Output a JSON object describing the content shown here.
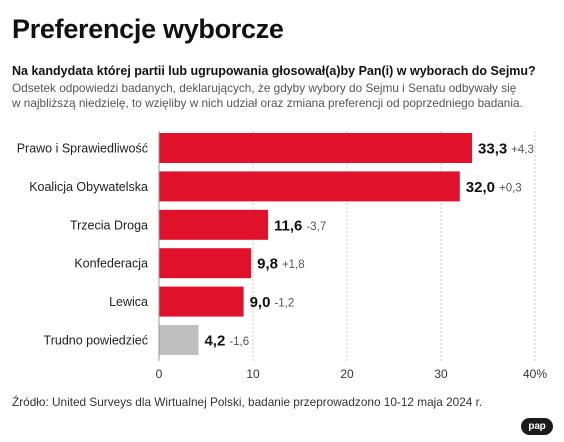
{
  "header": {
    "title": "Preferencje wyborcze",
    "subtitle": "Na kandydata której partii lub ugrupowania głosował(a)by Pan(i) w wyborach do Sejmu?",
    "description_line1": "Odsetek odpowiedzi badanych, deklarujących, że gdyby wybory do Sejmu i Senatu odbywały się",
    "description_line2": "w najbliższą niedzielę,  to wzięliby w nich udział oraz zmiana preferencji od poprzedniego badania."
  },
  "chart_data": {
    "type": "bar",
    "orientation": "horizontal",
    "categories": [
      "Prawo i Sprawiedliwość",
      "Koalicja Obywatelska",
      "Trzecia Droga",
      "Konfederacja",
      "Lewica",
      "Trudno powiedzieć"
    ],
    "values": [
      33.3,
      32.0,
      11.6,
      9.8,
      9.0,
      4.2
    ],
    "value_labels": [
      "33,3",
      "32,0",
      "11,6",
      "9,8",
      "9,0",
      "4,2"
    ],
    "change_labels": [
      "+4,3",
      "+0,3",
      "-3,7",
      "+1,8",
      "-1,2",
      "-1,6"
    ],
    "bar_colors": [
      "#e0112b",
      "#e0112b",
      "#e0112b",
      "#e0112b",
      "#e0112b",
      "#bfbfbf"
    ],
    "xlim": [
      0,
      40
    ],
    "x_ticks": [
      0,
      10,
      20,
      30,
      40
    ],
    "x_tick_labels": [
      "0",
      "10",
      "20",
      "30",
      "40%"
    ],
    "grid": true
  },
  "footer": {
    "source": "Źródło: United Surveys dla Wirtualnej Polski, badanie przeprowadzono 10-12 maja 2024 r.",
    "logo_text": "pap"
  },
  "colors": {
    "bar_main": "#e0112b",
    "bar_other": "#bfbfbf",
    "grid": "#c8c8c8"
  }
}
